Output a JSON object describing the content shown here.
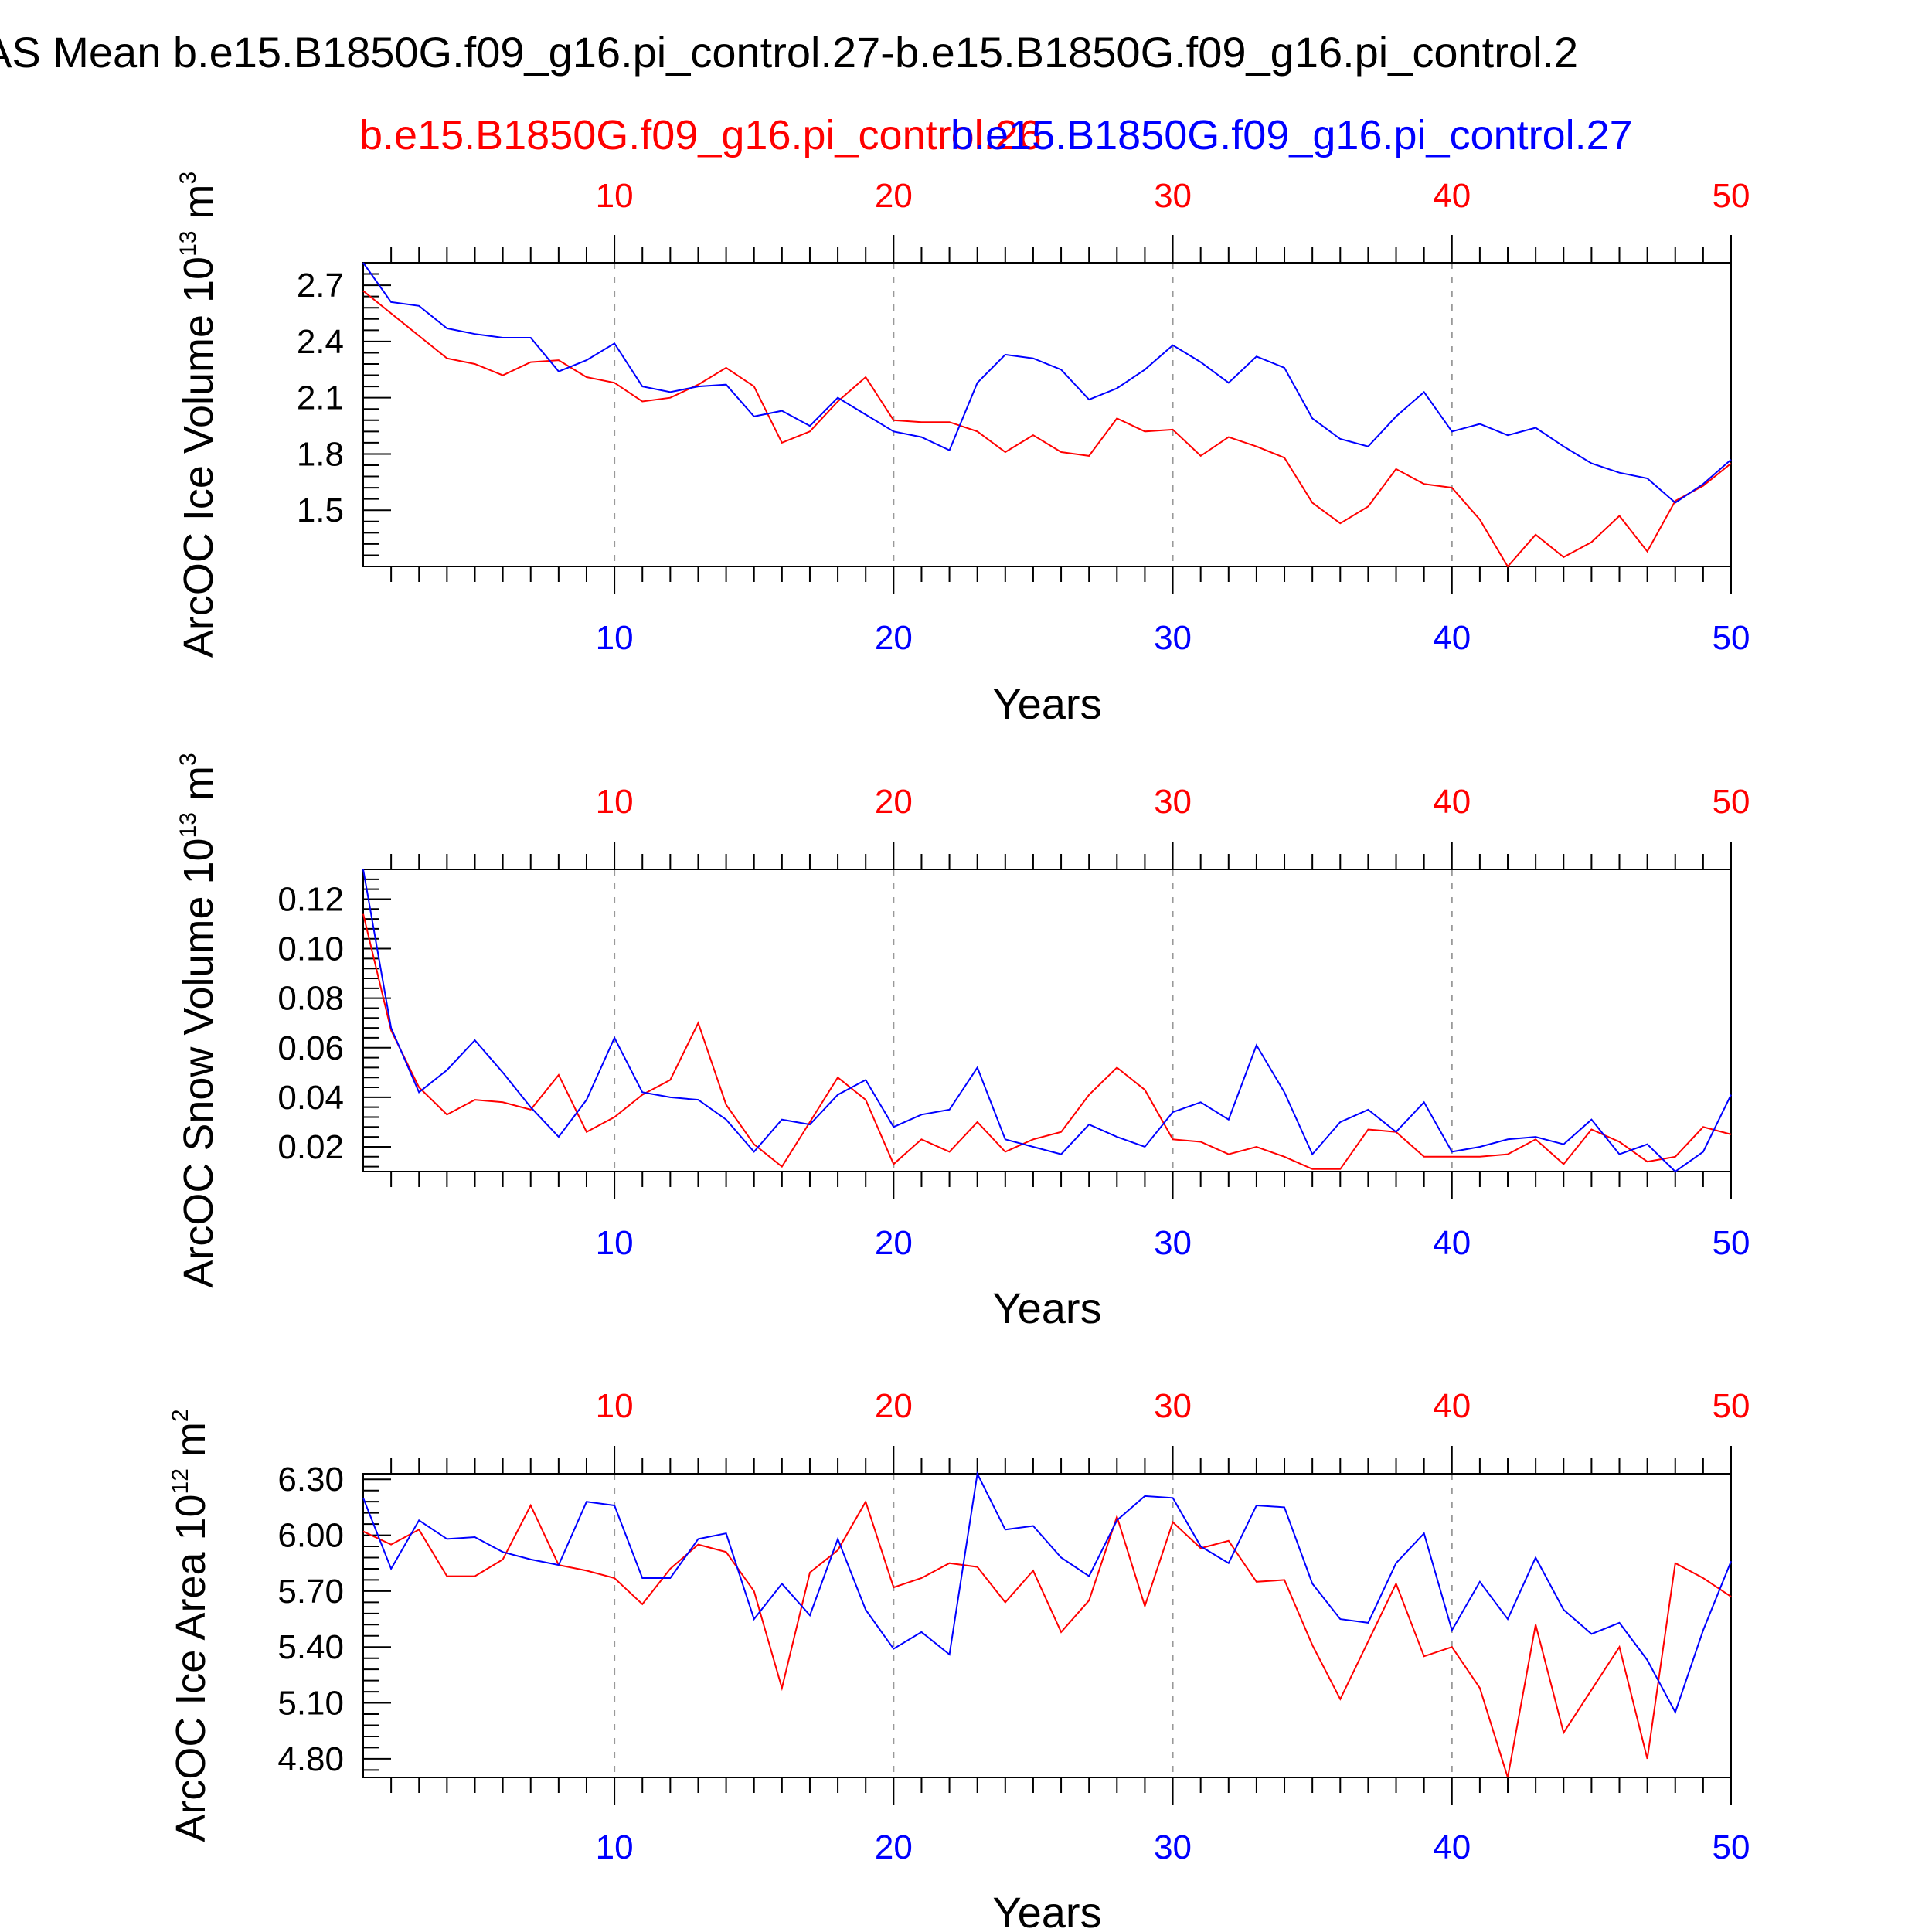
{
  "chart_data": {
    "title": "AS Mean b.e15.B1850G.f09_g16.pi_control.27-b.e15.B1850G.f09_g16.pi_control.2",
    "legend": {
      "red_label": "b.e15.B1850G.f09_g16.pi_control.26",
      "blue_label": "b.e15.B1850G.f09_g16.pi_control.27"
    },
    "colors": {
      "red": "#ff0000",
      "blue": "#0000ff",
      "axis": "#000000",
      "grid": "#999999"
    },
    "x": [
      1,
      2,
      3,
      4,
      5,
      6,
      7,
      8,
      9,
      10,
      11,
      12,
      13,
      14,
      15,
      16,
      17,
      18,
      19,
      20,
      21,
      22,
      23,
      24,
      25,
      26,
      27,
      28,
      29,
      30,
      31,
      32,
      33,
      34,
      35,
      36,
      37,
      38,
      39,
      40,
      41,
      42,
      43,
      44,
      45,
      46,
      47,
      48,
      49,
      50
    ],
    "xlim": [
      1,
      50
    ],
    "xticks": [
      10,
      20,
      30,
      40,
      50
    ],
    "charts": [
      {
        "type": "line",
        "ylabel": "ArcOC Ice Volume 10",
        "yexp": "13",
        "yunit": "m",
        "yunitexp": "3",
        "xlabel": "Years",
        "ylim": [
          1.2,
          2.82
        ],
        "yticks": [
          "2.7",
          "2.4",
          "2.1",
          "1.8",
          "1.5"
        ],
        "red": [
          2.67,
          2.55,
          2.43,
          2.31,
          2.28,
          2.22,
          2.29,
          2.3,
          2.21,
          2.18,
          2.08,
          2.1,
          2.17,
          2.26,
          2.16,
          1.86,
          1.92,
          2.08,
          2.21,
          1.98,
          1.97,
          1.97,
          1.92,
          1.81,
          1.9,
          1.81,
          1.79,
          1.99,
          1.92,
          1.93,
          1.79,
          1.89,
          1.84,
          1.78,
          1.54,
          1.43,
          1.52,
          1.72,
          1.64,
          1.62,
          1.45,
          1.2,
          1.37,
          1.25,
          1.33,
          1.47,
          1.28,
          1.55,
          1.63,
          1.75
        ],
        "blue": [
          2.82,
          2.61,
          2.59,
          2.47,
          2.44,
          2.42,
          2.42,
          2.24,
          2.3,
          2.39,
          2.16,
          2.13,
          2.16,
          2.17,
          2.0,
          2.03,
          1.95,
          2.1,
          2.01,
          1.92,
          1.89,
          1.82,
          2.18,
          2.33,
          2.31,
          2.25,
          2.09,
          2.15,
          2.25,
          2.38,
          2.29,
          2.18,
          2.32,
          2.26,
          1.99,
          1.88,
          1.84,
          2.0,
          2.13,
          1.92,
          1.96,
          1.9,
          1.94,
          1.84,
          1.75,
          1.7,
          1.67,
          1.54,
          1.64,
          1.77
        ]
      },
      {
        "type": "line",
        "ylabel": "ArcOC Snow Volume 10",
        "yexp": "13",
        "yunit": "m",
        "yunitexp": "3",
        "xlabel": "Years",
        "ylim": [
          0.01,
          0.132
        ],
        "yticks": [
          "0.12",
          "0.10",
          "0.08",
          "0.06",
          "0.04",
          "0.02"
        ],
        "red": [
          0.114,
          0.067,
          0.044,
          0.033,
          0.039,
          0.038,
          0.035,
          0.049,
          0.026,
          0.032,
          0.041,
          0.047,
          0.07,
          0.037,
          0.021,
          0.012,
          0.03,
          0.048,
          0.039,
          0.013,
          0.023,
          0.018,
          0.03,
          0.018,
          0.023,
          0.026,
          0.041,
          0.052,
          0.043,
          0.023,
          0.022,
          0.017,
          0.02,
          0.016,
          0.011,
          0.011,
          0.027,
          0.026,
          0.016,
          0.016,
          0.016,
          0.017,
          0.023,
          0.013,
          0.027,
          0.022,
          0.014,
          0.016,
          0.028,
          0.025
        ],
        "blue": [
          0.132,
          0.068,
          0.042,
          0.051,
          0.063,
          0.05,
          0.036,
          0.024,
          0.039,
          0.064,
          0.042,
          0.04,
          0.039,
          0.031,
          0.018,
          0.031,
          0.029,
          0.041,
          0.047,
          0.028,
          0.033,
          0.035,
          0.052,
          0.023,
          0.02,
          0.017,
          0.029,
          0.024,
          0.02,
          0.034,
          0.038,
          0.031,
          0.061,
          0.042,
          0.017,
          0.03,
          0.035,
          0.026,
          0.038,
          0.018,
          0.02,
          0.023,
          0.024,
          0.021,
          0.031,
          0.017,
          0.021,
          0.01,
          0.018,
          0.041
        ]
      },
      {
        "type": "line",
        "ylabel": "ArcOC Ice Area 10",
        "yexp": "12",
        "yunit": "m",
        "yunitexp": "2",
        "xlabel": "Years",
        "ylim": [
          4.7,
          6.33
        ],
        "yticks": [
          "6.30",
          "6.00",
          "5.70",
          "5.40",
          "5.10",
          "4.80"
        ],
        "red": [
          6.02,
          5.95,
          6.03,
          5.78,
          5.78,
          5.87,
          6.16,
          5.84,
          5.81,
          5.77,
          5.63,
          5.82,
          5.95,
          5.91,
          5.7,
          5.18,
          5.8,
          5.92,
          6.18,
          5.72,
          5.77,
          5.85,
          5.83,
          5.64,
          5.81,
          5.48,
          5.65,
          6.1,
          5.62,
          6.07,
          5.93,
          5.97,
          5.75,
          5.76,
          5.41,
          5.12,
          5.43,
          5.74,
          5.35,
          5.4,
          5.18,
          4.7,
          5.52,
          4.94,
          5.17,
          5.4,
          4.8,
          5.85,
          5.77,
          5.67
        ],
        "blue": [
          6.2,
          5.82,
          6.08,
          5.98,
          5.99,
          5.91,
          5.87,
          5.84,
          6.18,
          6.16,
          5.77,
          5.77,
          5.98,
          6.01,
          5.55,
          5.74,
          5.57,
          5.98,
          5.6,
          5.39,
          5.48,
          5.36,
          6.33,
          6.03,
          6.05,
          5.88,
          5.78,
          6.08,
          6.21,
          6.2,
          5.94,
          5.85,
          6.16,
          6.15,
          5.74,
          5.55,
          5.53,
          5.85,
          6.01,
          5.49,
          5.75,
          5.55,
          5.88,
          5.6,
          5.47,
          5.53,
          5.33,
          5.05,
          5.49,
          5.86
        ]
      }
    ]
  }
}
